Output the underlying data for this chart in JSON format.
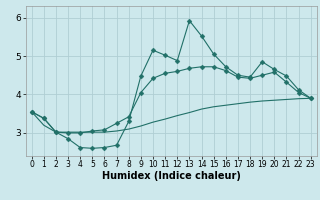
{
  "xlabel": "Humidex (Indice chaleur)",
  "xlim": [
    -0.5,
    23.5
  ],
  "ylim": [
    2.4,
    6.3
  ],
  "yticks": [
    3,
    4,
    5,
    6
  ],
  "xticks": [
    0,
    1,
    2,
    3,
    4,
    5,
    6,
    7,
    8,
    9,
    10,
    11,
    12,
    13,
    14,
    15,
    16,
    17,
    18,
    19,
    20,
    21,
    22,
    23
  ],
  "background_color": "#cde8ec",
  "grid_color": "#b0ced4",
  "line_color": "#217068",
  "x": [
    0,
    1,
    2,
    3,
    4,
    5,
    6,
    7,
    8,
    9,
    10,
    11,
    12,
    13,
    14,
    15,
    16,
    17,
    18,
    19,
    20,
    21,
    22,
    23
  ],
  "line1": [
    3.55,
    3.38,
    3.02,
    2.85,
    2.62,
    2.6,
    2.62,
    2.68,
    3.3,
    4.48,
    5.15,
    5.02,
    4.88,
    5.92,
    5.52,
    5.05,
    4.72,
    4.5,
    4.45,
    4.85,
    4.65,
    4.48,
    4.12,
    3.9
  ],
  "line2": [
    3.55,
    3.38,
    3.02,
    3.0,
    3.0,
    3.05,
    3.08,
    3.25,
    3.42,
    4.05,
    4.42,
    4.55,
    4.6,
    4.68,
    4.72,
    4.72,
    4.62,
    4.45,
    4.42,
    4.5,
    4.58,
    4.32,
    4.05,
    3.9
  ],
  "line3": [
    3.55,
    3.2,
    3.02,
    3.02,
    3.02,
    3.02,
    3.02,
    3.05,
    3.1,
    3.18,
    3.28,
    3.36,
    3.45,
    3.53,
    3.62,
    3.68,
    3.72,
    3.76,
    3.8,
    3.83,
    3.85,
    3.87,
    3.89,
    3.9
  ]
}
